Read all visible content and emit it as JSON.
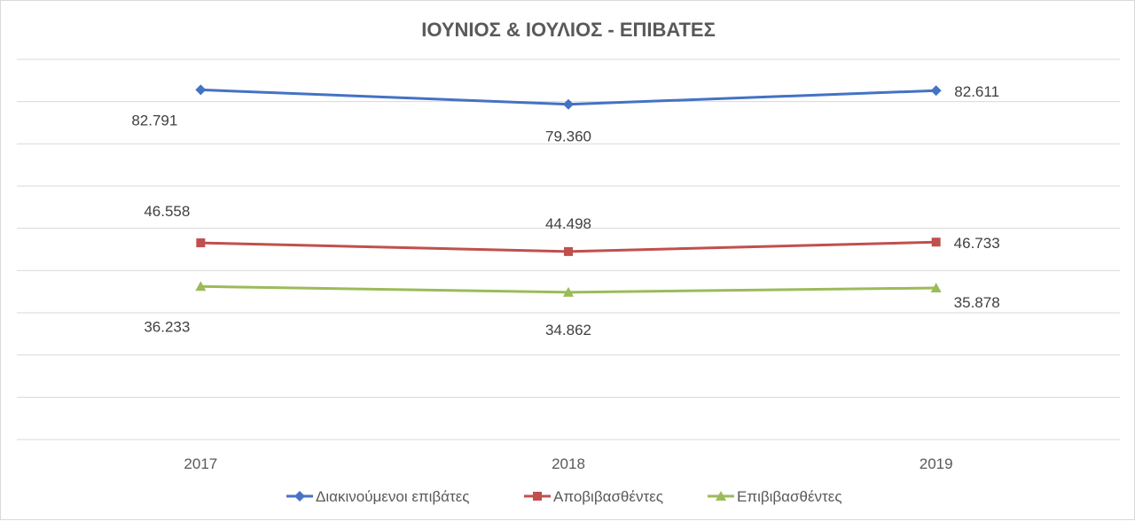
{
  "chart_data": {
    "type": "line",
    "title": "ΙΟΥΝΙΟΣ & ΙΟΥΛΙΟΣ - ΕΠΙΒΑΤΕΣ",
    "categories": [
      "2017",
      "2018",
      "2019"
    ],
    "xlabel": "",
    "ylabel": "",
    "ylim": [
      0,
      90000
    ],
    "grid": true,
    "legend_position": "bottom",
    "series": [
      {
        "name": "Διακινούμενοι επιβάτες",
        "values": [
          82791,
          79360,
          82611
        ],
        "labels": [
          "82.791",
          "79.360",
          "82.611"
        ],
        "color": "#4472c4",
        "marker": "diamond"
      },
      {
        "name": "Αποβιβασθέντες",
        "values": [
          46558,
          44498,
          46733
        ],
        "labels": [
          "46.558",
          "44.498",
          "46.733"
        ],
        "color": "#c0504d",
        "marker": "square"
      },
      {
        "name": "Επιβιβασθέντες",
        "values": [
          36233,
          34862,
          35878
        ],
        "labels": [
          "36.233",
          "34.862",
          "35.878"
        ],
        "color": "#9bbb59",
        "marker": "triangle"
      }
    ]
  }
}
